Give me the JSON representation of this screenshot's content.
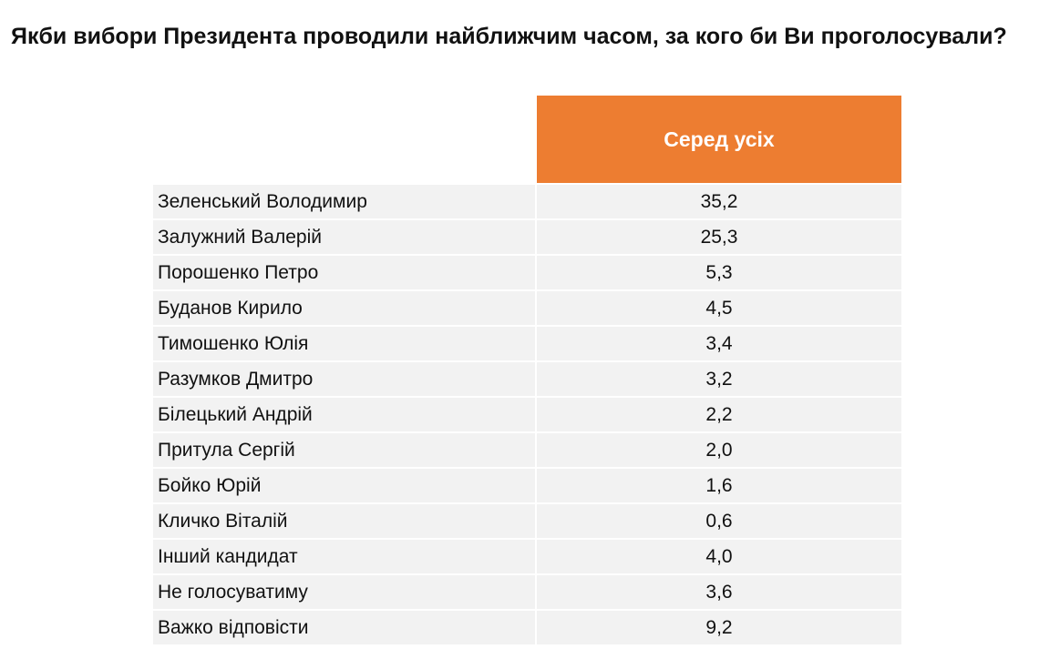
{
  "title": "Якби вибори Президента проводили найближчим часом, за кого би Ви проголосували?",
  "chart_data": {
    "type": "table",
    "title": "Якби вибори Президента проводили найближчим часом, за кого би Ви проголосували?",
    "columns": [
      "",
      "Серед усіх"
    ],
    "rows": [
      {
        "name": "Зеленський Володимир",
        "value": "35,2"
      },
      {
        "name": "Залужний Валерій",
        "value": "25,3"
      },
      {
        "name": "Порошенко Петро",
        "value": "5,3"
      },
      {
        "name": "Буданов Кирило",
        "value": "4,5"
      },
      {
        "name": "Тимошенко Юлія",
        "value": "3,4"
      },
      {
        "name": "Разумков Дмитро",
        "value": "3,2"
      },
      {
        "name": "Білецький Андрій",
        "value": "2,2"
      },
      {
        "name": "Притула Сергій",
        "value": "2,0"
      },
      {
        "name": "Бойко Юрій",
        "value": "1,6"
      },
      {
        "name": "Кличко Віталій",
        "value": "0,6"
      },
      {
        "name": "Інший кандидат",
        "value": "4,0"
      },
      {
        "name": "Не голосуватиму",
        "value": "3,6"
      },
      {
        "name": "Важко відповісти",
        "value": "9,2"
      }
    ]
  },
  "colors": {
    "header_bg": "#ed7d31",
    "header_text": "#ffffff",
    "row_bg": "#f2f2f2"
  }
}
